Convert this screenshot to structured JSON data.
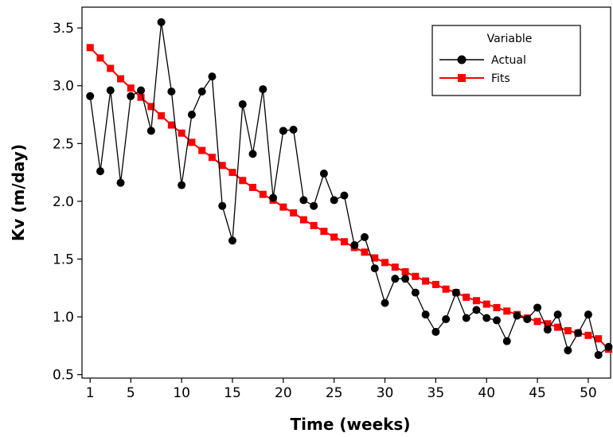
{
  "chart_data": {
    "type": "line",
    "xlabel": "Time (weeks)",
    "ylabel": "Kv (m/day)",
    "xlim": [
      0.2,
      52.2
    ],
    "ylim": [
      0.47,
      3.68
    ],
    "xticks": [
      1,
      5,
      10,
      15,
      20,
      25,
      30,
      35,
      40,
      45,
      50
    ],
    "yticks": [
      0.5,
      1.0,
      1.5,
      2.0,
      2.5,
      3.0,
      3.5
    ],
    "ytick_labels": [
      "0.5",
      "1.0",
      "1.5",
      "2.0",
      "2.5",
      "3.0",
      "3.5"
    ],
    "grid": false,
    "legend": {
      "title": "Variable",
      "placement": "top-right"
    },
    "series": [
      {
        "name": "Actual",
        "color": "#000000",
        "marker": "circle",
        "x": [
          1,
          2,
          3,
          4,
          5,
          6,
          7,
          8,
          9,
          10,
          11,
          12,
          13,
          14,
          15,
          16,
          17,
          18,
          19,
          20,
          21,
          22,
          23,
          24,
          25,
          26,
          27,
          28,
          29,
          30,
          31,
          32,
          33,
          34,
          35,
          36,
          37,
          38,
          39,
          40,
          41,
          42,
          43,
          44,
          45,
          46,
          47,
          48,
          49,
          50,
          51,
          52
        ],
        "values": [
          2.91,
          2.26,
          2.96,
          2.16,
          2.91,
          2.96,
          2.61,
          3.55,
          2.95,
          2.14,
          2.75,
          2.95,
          3.08,
          1.96,
          1.66,
          2.84,
          2.41,
          2.97,
          2.03,
          2.61,
          2.62,
          2.01,
          1.96,
          2.24,
          2.01,
          2.05,
          1.62,
          1.69,
          1.42,
          1.12,
          1.33,
          1.33,
          1.21,
          1.02,
          0.87,
          0.98,
          1.21,
          0.99,
          1.06,
          0.99,
          0.97,
          0.79,
          1.01,
          0.98,
          1.08,
          0.89,
          1.02,
          0.71,
          0.86,
          1.02,
          0.67,
          0.74
        ]
      },
      {
        "name": "Fits",
        "color": "#ff0000",
        "marker": "square",
        "x": [
          1,
          2,
          3,
          4,
          5,
          6,
          7,
          8,
          9,
          10,
          11,
          12,
          13,
          14,
          15,
          16,
          17,
          18,
          19,
          20,
          21,
          22,
          23,
          24,
          25,
          26,
          27,
          28,
          29,
          30,
          31,
          32,
          33,
          34,
          35,
          36,
          37,
          38,
          39,
          40,
          41,
          42,
          43,
          44,
          45,
          46,
          47,
          48,
          49,
          50,
          51,
          52
        ],
        "values": [
          3.33,
          3.24,
          3.15,
          3.06,
          2.98,
          2.9,
          2.82,
          2.74,
          2.66,
          2.59,
          2.51,
          2.44,
          2.38,
          2.31,
          2.25,
          2.18,
          2.12,
          2.06,
          2.01,
          1.95,
          1.9,
          1.84,
          1.79,
          1.74,
          1.69,
          1.65,
          1.6,
          1.56,
          1.51,
          1.47,
          1.43,
          1.39,
          1.35,
          1.31,
          1.28,
          1.24,
          1.21,
          1.17,
          1.14,
          1.11,
          1.08,
          1.05,
          1.02,
          0.99,
          0.96,
          0.94,
          0.91,
          0.88,
          0.86,
          0.84,
          0.81,
          0.72
        ]
      }
    ]
  }
}
